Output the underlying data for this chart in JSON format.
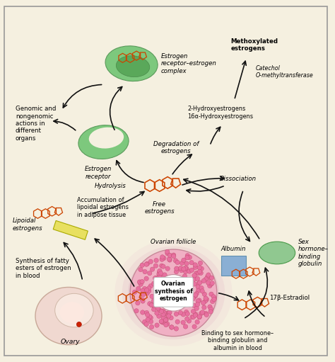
{
  "bg_color": "#f5f0e0",
  "border_color": "#888888",
  "steroid_color": "#cc4400",
  "receptor_fill": "#7dc87d",
  "receptor_fill2": "#5aa85a",
  "albumin_fill": "#8aafd4",
  "shbg_fill": "#90c890",
  "lipoidal_fill": "#e8e060",
  "arrow_color": "#111111",
  "labels": {
    "estrogen_receptor_complex": "Estrogen\nreceptor–estrogen\ncomplex",
    "methoxylated": "Methoxylated\nestrogens",
    "catechol": "Catechol\nO-methyltransferase",
    "hydroxy": "2-Hydroxyestrogens\n16α-Hydroxyestrogens",
    "genomic": "Genomic and\nnongenomic\nactions in\ndifferent\norgans",
    "estrogen_receptor": "Estrogen\nreceptor",
    "degradation": "Degradation of\nestrogens",
    "free_estrogens": "Free\nestrogens",
    "hydrolysis": "Hydrolysis",
    "dissociation": "Dissociation",
    "accumulation": "Accumulation of\nlipoidal estrogens\nin adipose tissue",
    "lipoidal": "Lipoidal\nestrogens",
    "albumin": "Albumin",
    "shbg": "Sex\nhormone–\nbinding\nglobulin",
    "estradiol": "17β-Estradiol",
    "binding": "Binding to sex hormone–\nbinding globulin and\nalbumin in blood",
    "ovarian_follicle": "Ovarian follicle",
    "ovarian_synthesis": "Ovarian\nsynthesis of\nestrogen",
    "synthesis_fatty": "Synthesis of fatty\nesters of estrogen\nin blood",
    "ovary": "Ovary"
  }
}
